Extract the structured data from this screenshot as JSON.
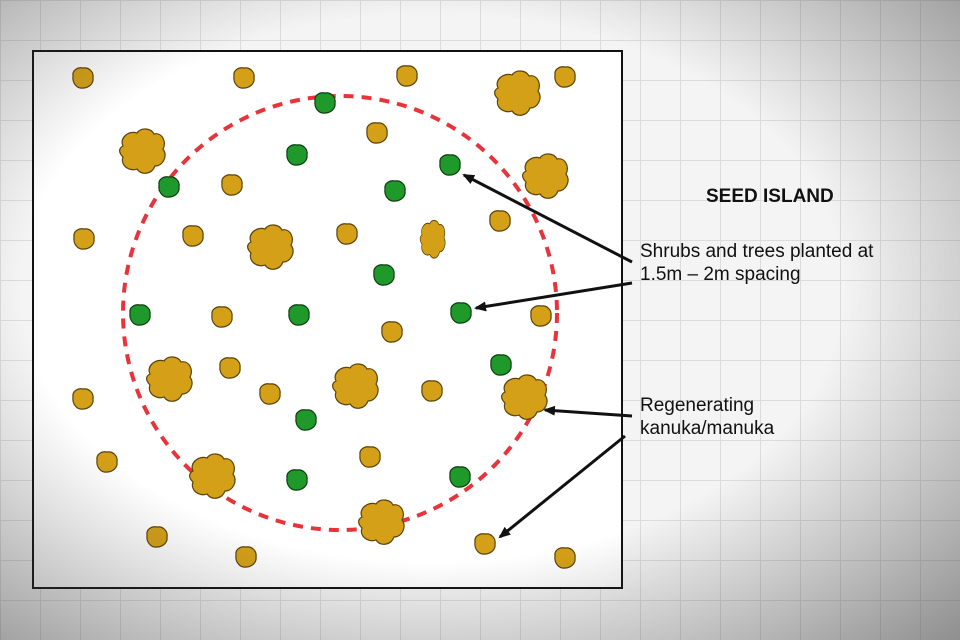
{
  "title": "SEED ISLAND",
  "labels": {
    "planted": "Shrubs and trees planted at\n1.5m – 2m spacing",
    "regenerating": "Regenerating\nkanuka/manuka"
  },
  "colors": {
    "planted": "#1f9a2a",
    "regenerating": "#d4a017",
    "circle": "#e8333a",
    "border": "#111111"
  }
}
